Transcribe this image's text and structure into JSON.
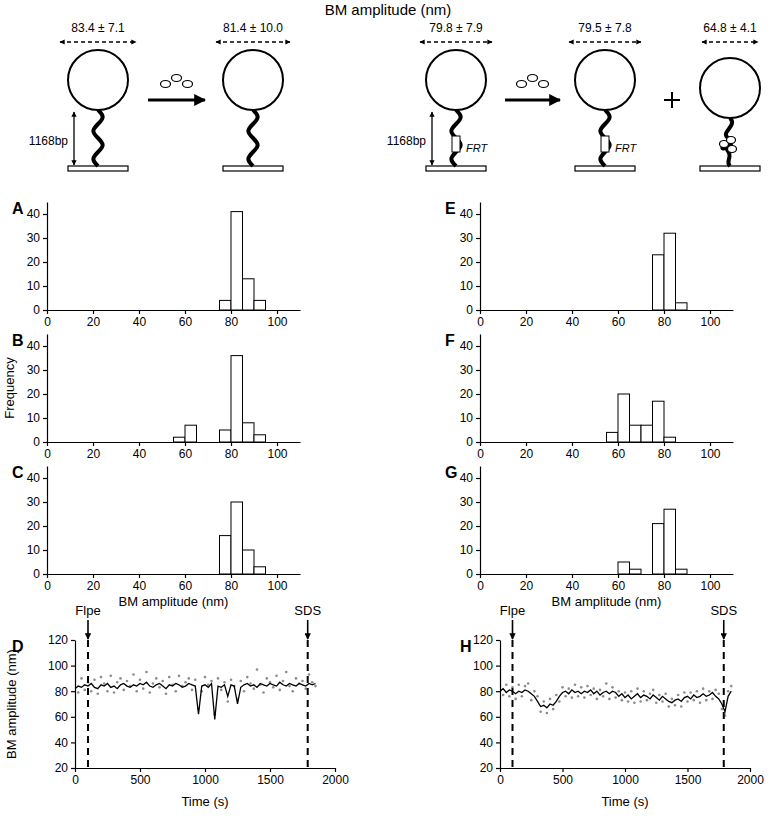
{
  "schematic": {
    "title": "BM amplitude (nm)",
    "left": {
      "length": "1168bp",
      "amplitudes": [
        "83.4 ± 7.1",
        "81.4 ± 10.0"
      ]
    },
    "right": {
      "length": "1168bp",
      "site": "FRT",
      "amplitudes": [
        "79.8 ± 7.9",
        "79.5 ± 7.8",
        "64.8 ± 4.1"
      ]
    }
  },
  "chart_data": [
    {
      "type": "histogram",
      "title": "A",
      "color": "#ffffff",
      "bins": [
        55,
        60,
        65,
        70,
        75,
        80,
        85,
        90,
        95
      ],
      "values": [
        0,
        0,
        0,
        0,
        4,
        41,
        13,
        4
      ],
      "xlim": [
        0,
        110
      ],
      "xticks": [
        0,
        20,
        40,
        60,
        80,
        100
      ],
      "ylim": [
        0,
        45
      ],
      "yticks": [
        0,
        10,
        20,
        30,
        40
      ]
    },
    {
      "type": "histogram",
      "title": "B",
      "color": "#ffffff",
      "y_label": "Frequency",
      "bins": [
        55,
        60,
        65,
        70,
        75,
        80,
        85,
        90,
        95
      ],
      "values": [
        2,
        7,
        0,
        0,
        5,
        36,
        8,
        3
      ],
      "xlim": [
        0,
        110
      ],
      "xticks": [
        0,
        20,
        40,
        60,
        80,
        100
      ],
      "ylim": [
        0,
        45
      ],
      "yticks": [
        0,
        10,
        20,
        30,
        40
      ]
    },
    {
      "type": "histogram",
      "title": "C",
      "color": "#ffffff",
      "x_label": "BM amplitude (nm)",
      "bins": [
        55,
        60,
        65,
        70,
        75,
        80,
        85,
        90,
        95
      ],
      "values": [
        0,
        0,
        0,
        0,
        16,
        30,
        10,
        3
      ],
      "xlim": [
        0,
        110
      ],
      "xticks": [
        0,
        20,
        40,
        60,
        80,
        100
      ],
      "ylim": [
        0,
        45
      ],
      "yticks": [
        0,
        10,
        20,
        30,
        40
      ]
    },
    {
      "type": "line",
      "title": "D",
      "x_label": "Time (s)",
      "y_label": "BM amplitude (nm)",
      "x": [
        0,
        25,
        50,
        75,
        100,
        125,
        150,
        175,
        200,
        225,
        250,
        275,
        300,
        325,
        350,
        375,
        400,
        425,
        450,
        475,
        500,
        525,
        550,
        575,
        600,
        625,
        650,
        675,
        700,
        725,
        750,
        775,
        800,
        825,
        850,
        875,
        900,
        925,
        950,
        975,
        1000,
        1025,
        1050,
        1075,
        1100,
        1125,
        1150,
        1175,
        1200,
        1225,
        1250,
        1275,
        1300,
        1325,
        1350,
        1375,
        1400,
        1425,
        1450,
        1475,
        1500,
        1525,
        1550,
        1575,
        1600,
        1625,
        1650,
        1675,
        1700,
        1725,
        1750,
        1775,
        1800,
        1825,
        1850
      ],
      "series": [
        {
          "type": "scatter",
          "color": "#8c8c8c",
          "values": [
            88,
            79,
            90,
            81,
            87,
            80,
            89,
            78,
            91,
            86,
            80,
            92,
            79,
            87,
            90,
            81,
            88,
            84,
            93,
            80,
            89,
            82,
            95,
            79,
            86,
            90,
            83,
            88,
            78,
            91,
            85,
            80,
            92,
            84,
            87,
            90,
            81,
            89,
            66,
            80,
            91,
            85,
            88,
            62,
            90,
            81,
            87,
            72,
            89,
            84,
            74,
            88,
            80,
            91,
            86,
            82,
            97,
            85,
            79,
            90,
            87,
            83,
            92,
            81,
            88,
            95,
            84,
            80,
            90,
            86,
            88,
            82,
            93,
            87,
            84
          ]
        },
        {
          "type": "line",
          "color": "#000000",
          "values": [
            82,
            84,
            83,
            85,
            84,
            86,
            83,
            82,
            85,
            84,
            86,
            83,
            84,
            82,
            85,
            86,
            84,
            83,
            85,
            84,
            86,
            85,
            87,
            84,
            83,
            85,
            86,
            84,
            82,
            85,
            84,
            86,
            85,
            83,
            84,
            86,
            85,
            84,
            62,
            84,
            85,
            83,
            86,
            58,
            84,
            83,
            85,
            76,
            85,
            84,
            70,
            83,
            85,
            86,
            84,
            85,
            83,
            86,
            85,
            84,
            86,
            85,
            84,
            87,
            85,
            84,
            86,
            85,
            84,
            86,
            85,
            84,
            86,
            85,
            86
          ]
        }
      ],
      "annotations": [
        {
          "text": "Flpe",
          "x": 100
        },
        {
          "text": "SDS",
          "x": 1790
        }
      ],
      "xlim": [
        0,
        2000
      ],
      "xticks": [
        0,
        500,
        1000,
        1500,
        2000
      ],
      "ylim": [
        20,
        120
      ],
      "yticks": [
        20,
        40,
        60,
        80,
        100,
        120
      ]
    },
    {
      "type": "histogram",
      "title": "E",
      "color": "#ffffff",
      "bins": [
        55,
        60,
        65,
        70,
        75,
        80,
        85,
        90,
        95
      ],
      "values": [
        0,
        0,
        0,
        0,
        23,
        32,
        3,
        0
      ],
      "xlim": [
        0,
        110
      ],
      "xticks": [
        0,
        20,
        40,
        60,
        80,
        100
      ],
      "ylim": [
        0,
        45
      ],
      "yticks": [
        0,
        10,
        20,
        30,
        40
      ]
    },
    {
      "type": "histogram",
      "title": "F",
      "color": "#ffffff",
      "bins": [
        55,
        60,
        65,
        70,
        75,
        80,
        85,
        90,
        95
      ],
      "values": [
        4,
        20,
        7,
        7,
        17,
        2,
        0,
        0
      ],
      "xlim": [
        0,
        110
      ],
      "xticks": [
        0,
        20,
        40,
        60,
        80,
        100
      ],
      "ylim": [
        0,
        45
      ],
      "yticks": [
        0,
        10,
        20,
        30,
        40
      ]
    },
    {
      "type": "histogram",
      "title": "G",
      "color": "#ffffff",
      "x_label": "BM amplitude (nm)",
      "bins": [
        55,
        60,
        65,
        70,
        75,
        80,
        85,
        90,
        95
      ],
      "values": [
        0,
        5,
        2,
        0,
        21,
        27,
        2,
        0
      ],
      "xlim": [
        0,
        110
      ],
      "xticks": [
        0,
        20,
        40,
        60,
        80,
        100
      ],
      "ylim": [
        0,
        45
      ],
      "yticks": [
        0,
        10,
        20,
        30,
        40
      ]
    },
    {
      "type": "line",
      "title": "H",
      "x_label": "Time (s)",
      "x": [
        0,
        25,
        50,
        75,
        100,
        125,
        150,
        175,
        200,
        225,
        250,
        275,
        300,
        325,
        350,
        375,
        400,
        425,
        450,
        475,
        500,
        525,
        550,
        575,
        600,
        625,
        650,
        675,
        700,
        725,
        750,
        775,
        800,
        825,
        850,
        875,
        900,
        925,
        950,
        975,
        1000,
        1025,
        1050,
        1075,
        1100,
        1125,
        1150,
        1175,
        1200,
        1225,
        1250,
        1275,
        1300,
        1325,
        1350,
        1375,
        1400,
        1425,
        1450,
        1475,
        1500,
        1525,
        1550,
        1575,
        1600,
        1625,
        1650,
        1675,
        1700,
        1725,
        1750,
        1775,
        1800,
        1825,
        1850
      ],
      "series": [
        {
          "type": "scatter",
          "color": "#8c8c8c",
          "values": [
            84,
            77,
            85,
            76,
            83,
            74,
            85,
            76,
            84,
            86,
            73,
            80,
            76,
            64,
            72,
            63,
            74,
            66,
            77,
            72,
            83,
            76,
            82,
            75,
            85,
            76,
            83,
            75,
            84,
            77,
            82,
            74,
            81,
            76,
            86,
            74,
            83,
            75,
            80,
            73,
            79,
            72,
            80,
            71,
            82,
            72,
            80,
            73,
            78,
            81,
            71,
            77,
            72,
            78,
            68,
            74,
            69,
            77,
            68,
            79,
            72,
            79,
            73,
            80,
            71,
            82,
            73,
            80,
            74,
            81,
            78,
            66,
            61,
            80,
            84
          ]
        },
        {
          "type": "line",
          "color": "#000000",
          "values": [
            80,
            82,
            79,
            81,
            80,
            78,
            80,
            79,
            81,
            80,
            78,
            76,
            72,
            68,
            69,
            67,
            70,
            69,
            72,
            76,
            79,
            80,
            78,
            81,
            79,
            80,
            78,
            80,
            79,
            81,
            78,
            80,
            77,
            79,
            80,
            78,
            80,
            79,
            76,
            78,
            75,
            77,
            74,
            76,
            78,
            75,
            77,
            76,
            74,
            77,
            75,
            73,
            76,
            74,
            72,
            71,
            73,
            74,
            72,
            75,
            76,
            74,
            77,
            75,
            76,
            78,
            76,
            77,
            79,
            76,
            74,
            70,
            64,
            76,
            80
          ]
        }
      ],
      "annotations": [
        {
          "text": "Flpe",
          "x": 100
        },
        {
          "text": "SDS",
          "x": 1790
        }
      ],
      "xlim": [
        0,
        2000
      ],
      "xticks": [
        0,
        500,
        1000,
        1500,
        2000
      ],
      "ylim": [
        20,
        120
      ],
      "yticks": [
        20,
        40,
        60,
        80,
        100,
        120
      ]
    }
  ]
}
